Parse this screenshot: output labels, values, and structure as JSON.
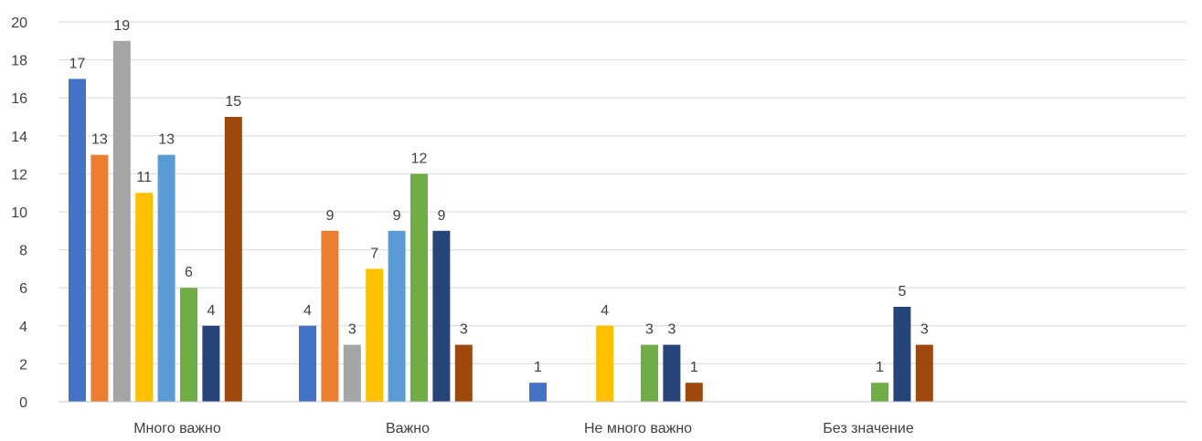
{
  "chart_data": {
    "type": "bar",
    "categories": [
      "Много важно",
      "Важно",
      "Не много важно",
      "Без значение"
    ],
    "series": [
      {
        "color": "#4472c4",
        "values": [
          17,
          4,
          1,
          0
        ]
      },
      {
        "color": "#ed7d31",
        "values": [
          13,
          9,
          0,
          0
        ]
      },
      {
        "color": "#a5a5a5",
        "values": [
          19,
          3,
          0,
          0
        ]
      },
      {
        "color": "#ffc000",
        "values": [
          11,
          7,
          4,
          0
        ]
      },
      {
        "color": "#5b9bd5",
        "values": [
          13,
          9,
          0,
          0
        ]
      },
      {
        "color": "#70ad47",
        "values": [
          6,
          12,
          3,
          1
        ]
      },
      {
        "color": "#264478",
        "values": [
          4,
          9,
          3,
          5
        ]
      },
      {
        "color": "#9e480e",
        "values": [
          15,
          3,
          1,
          3
        ]
      }
    ],
    "ylim": [
      0,
      20
    ],
    "yticks": [
      0,
      2,
      4,
      6,
      8,
      10,
      12,
      14,
      16,
      18,
      20
    ],
    "grid": true,
    "legend": "none"
  }
}
